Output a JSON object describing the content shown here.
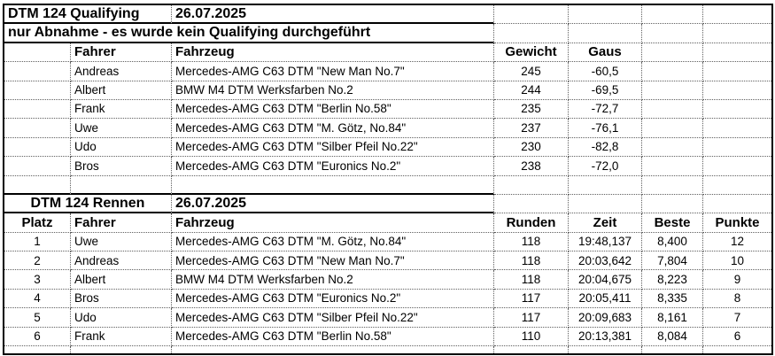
{
  "qualifying": {
    "title": "DTM 124 Qualifying",
    "date": "26.07.2025",
    "note": "nur Abnahme - es wurde kein Qualifying durchgeführt",
    "headers": {
      "fahrer": "Fahrer",
      "fahrzeug": "Fahrzeug",
      "gewicht": "Gewicht",
      "gaus": "Gaus"
    },
    "rows": [
      {
        "fahrer": "Andreas",
        "fahrzeug": "Mercedes-AMG C63 DTM \"New Man No.7\"",
        "gewicht": "245",
        "gaus": "-60,5"
      },
      {
        "fahrer": "Albert",
        "fahrzeug": "BMW M4 DTM Werksfarben No.2",
        "gewicht": "244",
        "gaus": "-69,5"
      },
      {
        "fahrer": "Frank",
        "fahrzeug": "Mercedes-AMG C63 DTM \"Berlin No.58\"",
        "gewicht": "235",
        "gaus": "-72,7"
      },
      {
        "fahrer": "Uwe",
        "fahrzeug": "Mercedes-AMG C63 DTM \"M. Götz, No.84\"",
        "gewicht": "237",
        "gaus": "-76,1"
      },
      {
        "fahrer": "Udo",
        "fahrzeug": "Mercedes-AMG C63 DTM \"Silber Pfeil No.22\"",
        "gewicht": "230",
        "gaus": "-82,8"
      },
      {
        "fahrer": "Bros",
        "fahrzeug": "Mercedes-AMG C63 DTM \"Euronics No.2\"",
        "gewicht": "238",
        "gaus": "-72,0"
      }
    ]
  },
  "race": {
    "title": "DTM 124 Rennen",
    "date": "26.07.2025",
    "headers": {
      "platz": "Platz",
      "fahrer": "Fahrer",
      "fahrzeug": "Fahrzeug",
      "runden": "Runden",
      "zeit": "Zeit",
      "beste": "Beste",
      "punkte": "Punkte"
    },
    "rows": [
      {
        "platz": "1",
        "fahrer": "Uwe",
        "fahrzeug": "Mercedes-AMG C63 DTM \"M. Götz, No.84\"",
        "runden": "118",
        "zeit": "19:48,137",
        "beste": "8,400",
        "punkte": "12"
      },
      {
        "platz": "2",
        "fahrer": "Andreas",
        "fahrzeug": "Mercedes-AMG C63 DTM \"New Man No.7\"",
        "runden": "118",
        "zeit": "20:03,642",
        "beste": "7,804",
        "punkte": "10"
      },
      {
        "platz": "3",
        "fahrer": "Albert",
        "fahrzeug": "BMW M4 DTM Werksfarben No.2",
        "runden": "118",
        "zeit": "20:04,675",
        "beste": "8,223",
        "punkte": "9"
      },
      {
        "platz": "4",
        "fahrer": "Bros",
        "fahrzeug": "Mercedes-AMG C63 DTM \"Euronics No.2\"",
        "runden": "117",
        "zeit": "20:05,411",
        "beste": "8,335",
        "punkte": "8"
      },
      {
        "platz": "5",
        "fahrer": "Udo",
        "fahrzeug": "Mercedes-AMG C63 DTM \"Silber Pfeil No.22\"",
        "runden": "117",
        "zeit": "20:09,683",
        "beste": "8,161",
        "punkte": "7"
      },
      {
        "platz": "6",
        "fahrer": "Frank",
        "fahrzeug": "Mercedes-AMG C63 DTM \"Berlin No.58\"",
        "runden": "110",
        "zeit": "20:13,381",
        "beste": "8,084",
        "punkte": "6"
      }
    ]
  },
  "colors": {
    "background": "#ffffff",
    "grid_line": "#5f5f5f",
    "solid_border": "#000000",
    "text": "#000000"
  }
}
